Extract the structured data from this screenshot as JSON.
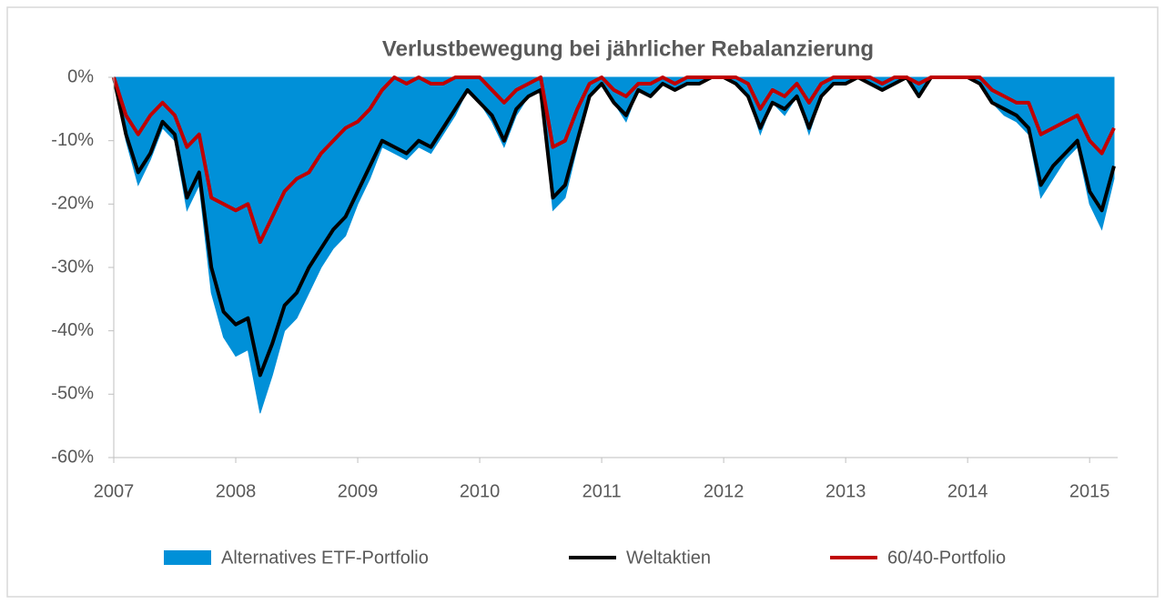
{
  "chart_data": {
    "type": "line",
    "title": "Verlustbewegung bei jährlicher Rebalanzierung",
    "x": [
      2007.0,
      2007.1,
      2007.2,
      2007.3,
      2007.4,
      2007.5,
      2007.6,
      2007.7,
      2007.8,
      2007.9,
      2008.0,
      2008.1,
      2008.2,
      2008.3,
      2008.4,
      2008.5,
      2008.6,
      2008.7,
      2008.8,
      2008.9,
      2009.0,
      2009.1,
      2009.2,
      2009.3,
      2009.4,
      2009.5,
      2009.6,
      2009.7,
      2009.8,
      2009.9,
      2010.0,
      2010.1,
      2010.2,
      2010.3,
      2010.4,
      2010.5,
      2010.6,
      2010.7,
      2010.8,
      2010.9,
      2011.0,
      2011.1,
      2011.2,
      2011.3,
      2011.4,
      2011.5,
      2011.6,
      2011.7,
      2011.8,
      2011.9,
      2012.0,
      2012.1,
      2012.2,
      2012.3,
      2012.4,
      2012.5,
      2012.6,
      2012.7,
      2012.8,
      2012.9,
      2013.0,
      2013.1,
      2013.2,
      2013.3,
      2013.4,
      2013.5,
      2013.6,
      2013.7,
      2013.8,
      2013.9,
      2014.0,
      2014.1,
      2014.2,
      2014.3,
      2014.4,
      2014.5,
      2014.6,
      2014.7,
      2014.8,
      2014.9,
      2015.0,
      2015.1,
      2015.2
    ],
    "series": [
      {
        "name": "Alternatives ETF-Portfolio",
        "kind": "area",
        "color": "#0090d8",
        "values": [
          0,
          -10,
          -17,
          -13,
          -8,
          -10,
          -21,
          -17,
          -34,
          -41,
          -44,
          -43,
          -53,
          -47,
          -40,
          -38,
          -34,
          -30,
          -27,
          -25,
          -20,
          -16,
          -11,
          -12,
          -13,
          -11,
          -12,
          -9,
          -6,
          -2,
          -4,
          -7,
          -11,
          -6,
          -3,
          -2,
          -21,
          -19,
          -11,
          -3,
          -1,
          -4,
          -7,
          -2,
          -3,
          -1,
          -2,
          -1,
          -1,
          0,
          0,
          -1,
          -3,
          -9,
          -4,
          -6,
          -3,
          -9,
          -3,
          -1,
          -1,
          0,
          -1,
          -2,
          -1,
          0,
          -3,
          0,
          0,
          0,
          0,
          -1,
          -4,
          -6,
          -7,
          -9,
          -19,
          -16,
          -13,
          -11,
          -20,
          -24,
          -16
        ]
      },
      {
        "name": "Weltaktien",
        "kind": "line",
        "color": "#000000",
        "values": [
          0,
          -9,
          -15,
          -12,
          -7,
          -9,
          -19,
          -15,
          -30,
          -37,
          -39,
          -38,
          -47,
          -42,
          -36,
          -34,
          -30,
          -27,
          -24,
          -22,
          -18,
          -14,
          -10,
          -11,
          -12,
          -10,
          -11,
          -8,
          -5,
          -2,
          -4,
          -6,
          -10,
          -5,
          -3,
          -2,
          -19,
          -17,
          -10,
          -3,
          -1,
          -4,
          -6,
          -2,
          -3,
          -1,
          -2,
          -1,
          -1,
          0,
          0,
          -1,
          -3,
          -8,
          -4,
          -5,
          -3,
          -8,
          -3,
          -1,
          -1,
          0,
          -1,
          -2,
          -1,
          0,
          -3,
          0,
          0,
          0,
          0,
          -1,
          -4,
          -5,
          -6,
          -8,
          -17,
          -14,
          -12,
          -10,
          -18,
          -21,
          -14
        ]
      },
      {
        "name": "60/40-Portfolio",
        "kind": "line",
        "color": "#c00000",
        "values": [
          0,
          -6,
          -9,
          -6,
          -4,
          -6,
          -11,
          -9,
          -19,
          -20,
          -21,
          -20,
          -26,
          -22,
          -18,
          -16,
          -15,
          -12,
          -10,
          -8,
          -7,
          -5,
          -2,
          0,
          -1,
          0,
          -1,
          -1,
          0,
          0,
          0,
          -2,
          -4,
          -2,
          -1,
          0,
          -11,
          -10,
          -5,
          -1,
          0,
          -2,
          -3,
          -1,
          -1,
          0,
          -1,
          0,
          0,
          0,
          0,
          0,
          -1,
          -5,
          -2,
          -3,
          -1,
          -4,
          -1,
          0,
          0,
          0,
          0,
          -1,
          0,
          0,
          -1,
          0,
          0,
          0,
          0,
          0,
          -2,
          -3,
          -4,
          -4,
          -9,
          -8,
          -7,
          -6,
          -10,
          -12,
          -8
        ]
      }
    ],
    "xlim": [
      2007,
      2015.23
    ],
    "xticks": [
      2007,
      2008,
      2009,
      2010,
      2011,
      2012,
      2013,
      2014,
      2015
    ],
    "ylim": [
      -60,
      0
    ],
    "yticks": [
      {
        "value": 0,
        "label": "0%"
      },
      {
        "value": -10,
        "label": "-10%"
      },
      {
        "value": -20,
        "label": "-20%"
      },
      {
        "value": -30,
        "label": "-30%"
      },
      {
        "value": -40,
        "label": "-40%"
      },
      {
        "value": -50,
        "label": "-50%"
      },
      {
        "value": -60,
        "label": "-60%"
      }
    ],
    "legend": "bottom"
  }
}
